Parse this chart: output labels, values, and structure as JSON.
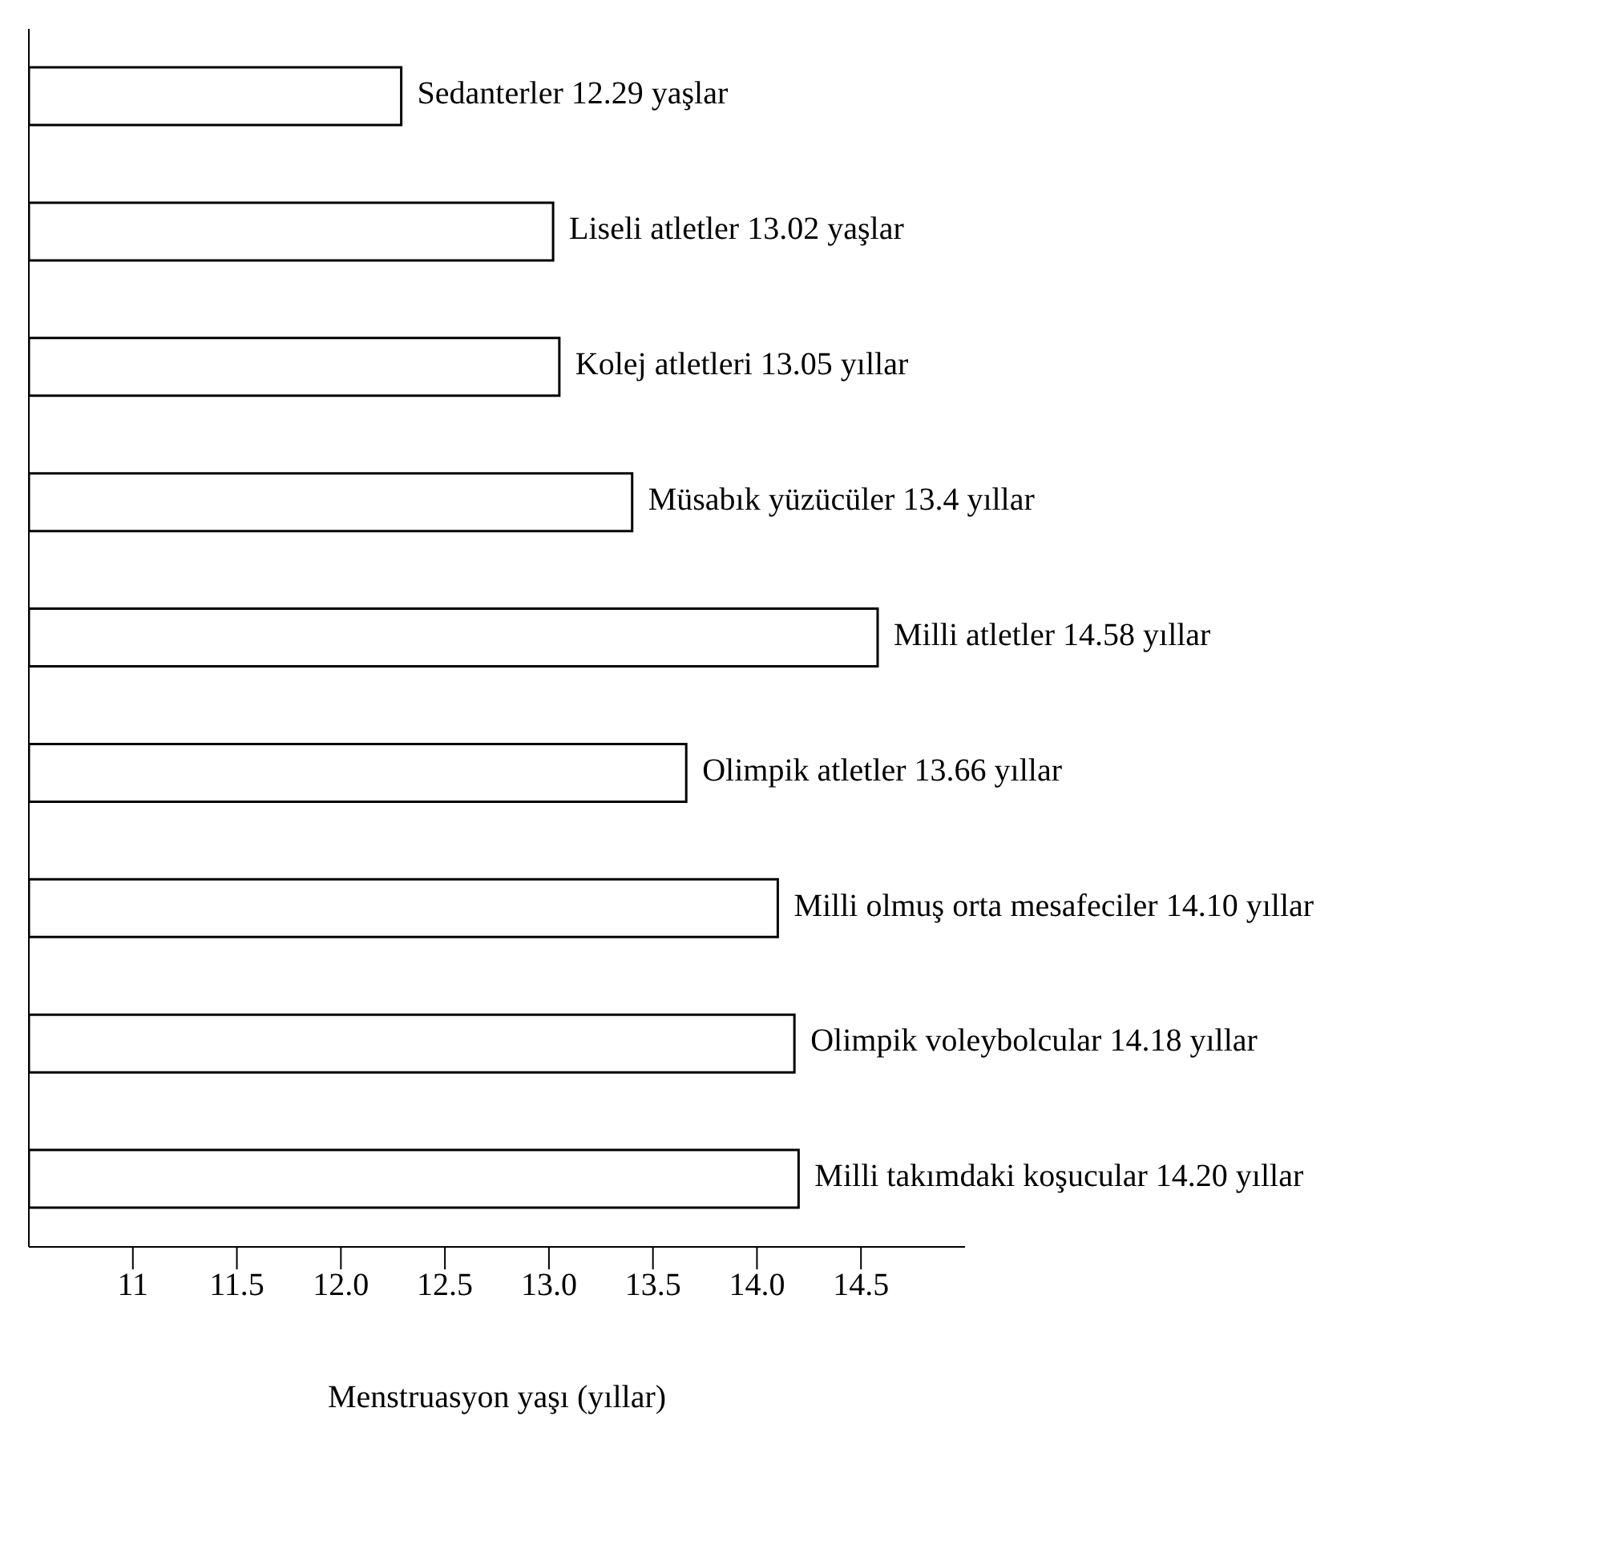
{
  "chart_data": {
    "type": "bar",
    "orientation": "horizontal",
    "xlabel": "Menstruasyon yaşı  (yıllar)",
    "categories": [
      "Sedanterler",
      "Liseli atletler",
      "Kolej atletleri",
      "Müsabık yüzücüler",
      "Milli atletler",
      "Olimpik atletler",
      "Milli olmuş orta mesafeciler",
      "Olimpik voleybolcular",
      "Milli takımdaki koşucular"
    ],
    "values": [
      12.29,
      13.02,
      13.05,
      13.4,
      14.58,
      13.66,
      14.1,
      14.18,
      14.2
    ],
    "value_labels": [
      "12.29 yaşlar",
      "13.02 yaşlar",
      "13.05 yıllar",
      "13.4 yıllar",
      "14.58 yıllar",
      "13.66 yıllar",
      "14.10 yıllar",
      "14.18 yıllar",
      "14.20 yıllar"
    ],
    "color": "#ffffff",
    "xlim": [
      10.5,
      15
    ],
    "xticks": [
      11,
      11.5,
      {
        "value": 12,
        "label": "12.0"
      },
      12.5,
      {
        "value": 13,
        "label": "13.0"
      },
      13.5,
      {
        "value": 14,
        "label": "14.0"
      },
      14.5
    ],
    "tick_labels": "x",
    "grid": false
  }
}
